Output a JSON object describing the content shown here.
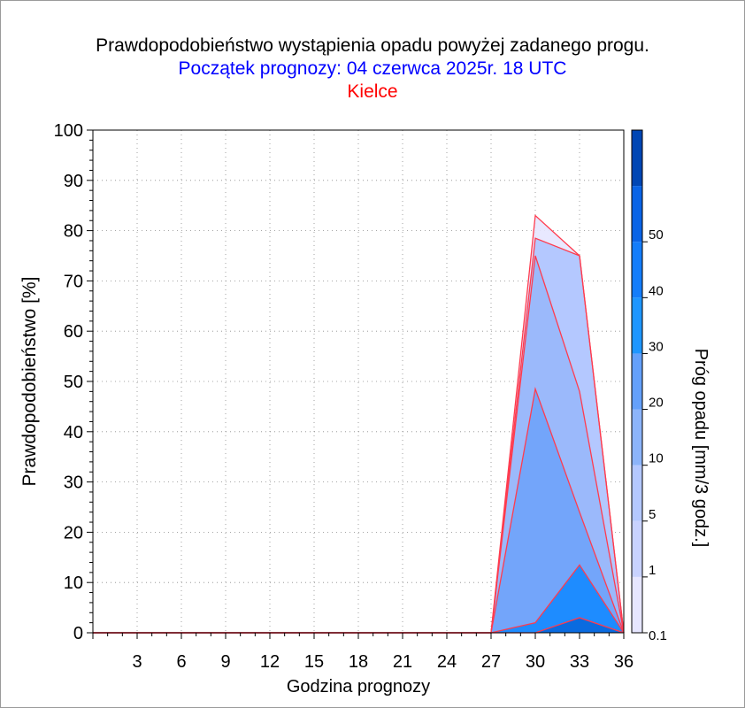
{
  "header": {
    "title": "Prawdopodobieństwo wystąpienia opadu powyżej zadanego progu.",
    "subtitle": "Początek prognozy: 04 czerwca 2025r. 18 UTC",
    "location": "Kielce"
  },
  "colors": {
    "title": "#000000",
    "subtitle": "#0000ff",
    "location": "#ff0000",
    "outline": "#ff3b4e"
  },
  "chart_data": {
    "type": "area",
    "xlabel": "Godzina prognozy",
    "ylabel": "Prawdopodobieństwo [%]",
    "colorbar_label": "Próg opadu [mm/3 godz.]",
    "xlim": [
      0,
      36
    ],
    "ylim": [
      0,
      100
    ],
    "x_ticks": [
      3,
      6,
      9,
      12,
      15,
      18,
      21,
      24,
      27,
      30,
      33,
      36
    ],
    "y_ticks": [
      0,
      10,
      20,
      30,
      40,
      50,
      60,
      70,
      80,
      90,
      100
    ],
    "grid": true,
    "x": [
      0,
      3,
      6,
      9,
      12,
      15,
      18,
      21,
      24,
      27,
      30,
      33,
      36
    ],
    "series": [
      {
        "threshold": "0.1",
        "color": "#e6e6ff",
        "values": [
          0,
          0,
          0,
          0,
          0,
          0,
          0,
          0,
          0,
          0,
          83,
          75,
          0
        ]
      },
      {
        "threshold": "1",
        "color": "#b4c8ff",
        "values": [
          0,
          0,
          0,
          0,
          0,
          0,
          0,
          0,
          0,
          0,
          78.5,
          75,
          0
        ]
      },
      {
        "threshold": "5",
        "color": "#9bb9fb",
        "values": [
          0,
          0,
          0,
          0,
          0,
          0,
          0,
          0,
          0,
          0,
          75,
          48,
          0
        ]
      },
      {
        "threshold": "10",
        "color": "#73a5fa",
        "values": [
          0,
          0,
          0,
          0,
          0,
          0,
          0,
          0,
          0,
          0,
          48.5,
          24,
          0
        ]
      },
      {
        "threshold": "20",
        "color": "#1e8cff",
        "values": [
          0,
          0,
          0,
          0,
          0,
          0,
          0,
          0,
          0,
          0,
          2,
          13.5,
          0
        ]
      },
      {
        "threshold": "30",
        "color": "#0a6be0",
        "values": [
          0,
          0,
          0,
          0,
          0,
          0,
          0,
          0,
          0,
          0,
          0,
          3,
          0
        ]
      }
    ],
    "colorbar": {
      "labels": [
        "0.1",
        "1",
        "5",
        "10",
        "20",
        "30",
        "40",
        "50"
      ],
      "colors": [
        "#e6e6ff",
        "#c8d2ff",
        "#b4c8ff",
        "#8cb4fa",
        "#64a0fa",
        "#1e96ff",
        "#147dfa",
        "#0a64e6",
        "#0046b4"
      ]
    }
  }
}
